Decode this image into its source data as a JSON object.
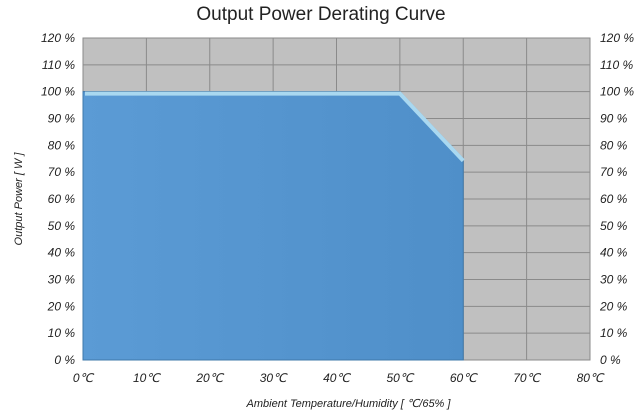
{
  "chart_data": {
    "type": "area",
    "title": "Output Power Derating Curve",
    "xlabel": "Ambient Temperature/Humidity [ ℃/65% ]",
    "ylabel": "Output Power [ W ]",
    "x_ticks": [
      "0℃",
      "10℃",
      "20℃",
      "30℃",
      "40℃",
      "50℃",
      "60℃",
      "70℃",
      "80℃"
    ],
    "y_ticks": [
      "0 %",
      "10 %",
      "20 %",
      "30 %",
      "40 %",
      "50 %",
      "60 %",
      "70 %",
      "80 %",
      "90 %",
      "100 %",
      "110 %",
      "120 %"
    ],
    "xlim": [
      0,
      80
    ],
    "ylim": [
      0,
      120
    ],
    "grid": true,
    "secondary_y_axis": true,
    "colors": {
      "area": "#5b9bd5",
      "top_line": "#a9d8f0",
      "plot_bg": "#c0c0c0",
      "grid": "#8a8a8a"
    },
    "series": [
      {
        "x": [
          0,
          50,
          60,
          60
        ],
        "y": [
          100,
          100,
          75,
          0
        ]
      }
    ]
  }
}
